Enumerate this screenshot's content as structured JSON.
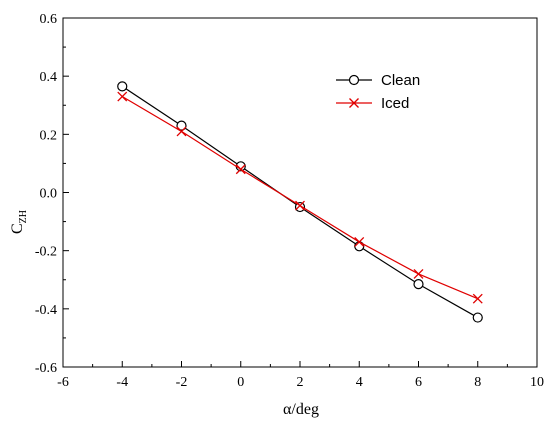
{
  "chart_data": {
    "type": "line",
    "xlabel": "α/deg",
    "ylabel_main": "C",
    "ylabel_sub": "ZH",
    "xlim": [
      -6,
      10
    ],
    "ylim": [
      -0.6,
      0.6
    ],
    "xticks": [
      -6,
      -4,
      -2,
      0,
      2,
      4,
      6,
      8,
      10
    ],
    "xtick_labels": [
      "-6",
      "-4",
      "-2",
      "0",
      "2",
      "4",
      "6",
      "8",
      "10"
    ],
    "yticks": [
      -0.6,
      -0.4,
      -0.2,
      0.0,
      0.2,
      0.4,
      0.6
    ],
    "ytick_labels": [
      "-0.6",
      "-0.4",
      "-0.2",
      "0.0",
      "0.2",
      "0.4",
      "0.6"
    ],
    "grid": false,
    "legend_position": "top-right",
    "series": [
      {
        "name": "Clean",
        "color": "#000000",
        "marker": "circle",
        "x": [
          -4,
          -2,
          0,
          2,
          4,
          6,
          8
        ],
        "y": [
          0.365,
          0.23,
          0.09,
          -0.05,
          -0.185,
          -0.315,
          -0.43
        ]
      },
      {
        "name": "Iced",
        "color": "#e00000",
        "marker": "x",
        "x": [
          -4,
          -2,
          0,
          2,
          4,
          6,
          8
        ],
        "y": [
          0.33,
          0.21,
          0.08,
          -0.045,
          -0.17,
          -0.28,
          -0.365
        ]
      }
    ]
  }
}
